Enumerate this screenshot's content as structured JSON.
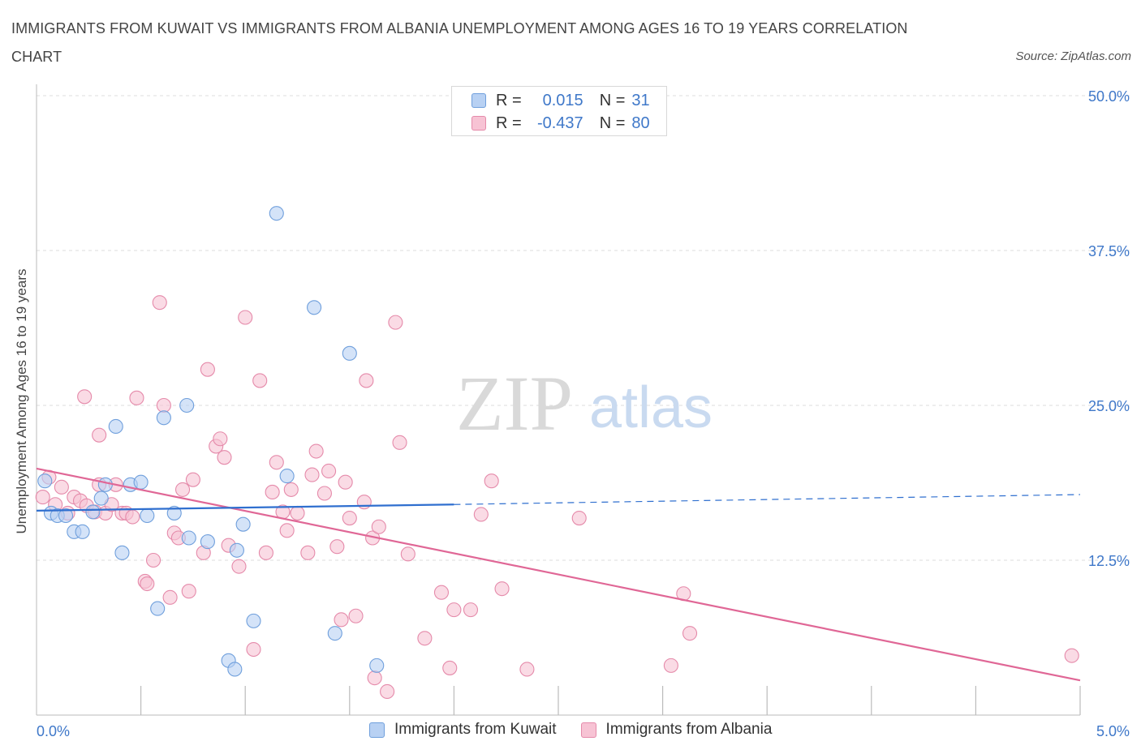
{
  "title": "IMMIGRANTS FROM KUWAIT VS IMMIGRANTS FROM ALBANIA UNEMPLOYMENT AMONG AGES 16 TO 19 YEARS CORRELATION CHART",
  "source": "Source: ZipAtlas.com",
  "watermark": {
    "zip": "ZIP",
    "atlas": "atlas"
  },
  "legend": {
    "kuwait": {
      "r_label": "R =",
      "r_value": "0.015",
      "n_label": "N =",
      "n_value": "31"
    },
    "albania": {
      "r_label": "R =",
      "r_value": "-0.437",
      "n_label": "N =",
      "n_value": "80"
    }
  },
  "colors": {
    "kuwait_fill": "#b8d1f3",
    "kuwait_stroke": "#6f9fdc",
    "kuwait_line": "#2f6fcf",
    "albania_fill": "#f7c3d4",
    "albania_stroke": "#e58aaa",
    "albania_line": "#e06796",
    "grid": "#dddddd",
    "tick_text": "#3f78c9"
  },
  "chart_data": {
    "type": "scatter",
    "title": "IMMIGRANTS FROM KUWAIT VS IMMIGRANTS FROM ALBANIA UNEMPLOYMENT AMONG AGES 16 TO 19 YEARS CORRELATION CHART",
    "xlabel": "",
    "ylabel": "Unemployment Among Ages 16 to 19 years",
    "xlim": [
      0,
      5
    ],
    "ylim": [
      0,
      50
    ],
    "x_tick_labels": [
      "0.0%",
      "5.0%"
    ],
    "y_ticks": [
      12.5,
      25.0,
      37.5,
      50.0
    ],
    "y_tick_labels": [
      "12.5%",
      "25.0%",
      "37.5%",
      "50.0%"
    ],
    "grid": true,
    "legend_position": "top-center",
    "series": [
      {
        "name": "Immigrants from Kuwait",
        "points": [
          [
            0.04,
            18.9
          ],
          [
            0.07,
            16.3
          ],
          [
            0.1,
            16.1
          ],
          [
            0.14,
            16.1
          ],
          [
            0.18,
            14.8
          ],
          [
            0.22,
            14.8
          ],
          [
            0.27,
            16.4
          ],
          [
            0.31,
            17.5
          ],
          [
            0.33,
            18.6
          ],
          [
            0.38,
            23.3
          ],
          [
            0.41,
            13.1
          ],
          [
            0.45,
            18.6
          ],
          [
            0.5,
            18.8
          ],
          [
            0.53,
            16.1
          ],
          [
            0.58,
            8.6
          ],
          [
            0.61,
            24.0
          ],
          [
            0.66,
            16.3
          ],
          [
            0.72,
            25.0
          ],
          [
            0.73,
            14.3
          ],
          [
            0.82,
            14.0
          ],
          [
            0.92,
            4.4
          ],
          [
            0.95,
            3.7
          ],
          [
            0.96,
            13.3
          ],
          [
            0.99,
            15.4
          ],
          [
            1.04,
            7.6
          ],
          [
            1.15,
            40.5
          ],
          [
            1.2,
            19.3
          ],
          [
            1.33,
            32.9
          ],
          [
            1.43,
            6.6
          ],
          [
            1.5,
            29.2
          ],
          [
            1.63,
            4.0
          ]
        ],
        "trend_solid": [
          [
            0.0,
            16.5
          ],
          [
            2.0,
            17.0
          ]
        ],
        "trend_dashed": [
          [
            2.0,
            17.0
          ],
          [
            5.0,
            17.8
          ]
        ]
      },
      {
        "name": "Immigrants from Albania",
        "points": [
          [
            0.03,
            17.6
          ],
          [
            0.06,
            19.2
          ],
          [
            0.09,
            17.0
          ],
          [
            0.12,
            18.4
          ],
          [
            0.15,
            16.3
          ],
          [
            0.18,
            17.6
          ],
          [
            0.21,
            17.3
          ],
          [
            0.24,
            16.9
          ],
          [
            0.23,
            25.7
          ],
          [
            0.28,
            16.4
          ],
          [
            0.3,
            18.6
          ],
          [
            0.3,
            22.6
          ],
          [
            0.33,
            16.3
          ],
          [
            0.36,
            17.0
          ],
          [
            0.38,
            18.6
          ],
          [
            0.41,
            16.3
          ],
          [
            0.43,
            16.3
          ],
          [
            0.46,
            16.0
          ],
          [
            0.48,
            25.6
          ],
          [
            0.52,
            10.8
          ],
          [
            0.53,
            10.6
          ],
          [
            0.56,
            12.5
          ],
          [
            0.59,
            33.3
          ],
          [
            0.61,
            25.0
          ],
          [
            0.64,
            9.5
          ],
          [
            0.66,
            14.7
          ],
          [
            0.68,
            14.3
          ],
          [
            0.7,
            18.2
          ],
          [
            0.73,
            10.0
          ],
          [
            0.75,
            19.0
          ],
          [
            0.8,
            13.1
          ],
          [
            0.82,
            27.9
          ],
          [
            0.86,
            21.7
          ],
          [
            0.88,
            22.3
          ],
          [
            0.9,
            20.8
          ],
          [
            0.92,
            13.7
          ],
          [
            0.97,
            12.0
          ],
          [
            1.0,
            32.1
          ],
          [
            1.04,
            5.3
          ],
          [
            1.07,
            27.0
          ],
          [
            1.1,
            13.1
          ],
          [
            1.13,
            18.0
          ],
          [
            1.15,
            20.4
          ],
          [
            1.18,
            16.4
          ],
          [
            1.2,
            14.9
          ],
          [
            1.22,
            18.2
          ],
          [
            1.25,
            16.3
          ],
          [
            1.3,
            13.1
          ],
          [
            1.32,
            19.4
          ],
          [
            1.34,
            21.3
          ],
          [
            1.38,
            17.9
          ],
          [
            1.4,
            19.7
          ],
          [
            1.44,
            13.6
          ],
          [
            1.46,
            7.7
          ],
          [
            1.48,
            18.8
          ],
          [
            1.5,
            15.9
          ],
          [
            1.53,
            8.0
          ],
          [
            1.57,
            17.2
          ],
          [
            1.58,
            27.0
          ],
          [
            1.61,
            14.3
          ],
          [
            1.62,
            3.0
          ],
          [
            1.64,
            15.2
          ],
          [
            1.68,
            1.9
          ],
          [
            1.72,
            31.7
          ],
          [
            1.74,
            22.0
          ],
          [
            1.78,
            13.0
          ],
          [
            1.86,
            6.2
          ],
          [
            1.94,
            9.9
          ],
          [
            1.98,
            3.8
          ],
          [
            2.0,
            8.5
          ],
          [
            2.08,
            8.5
          ],
          [
            2.13,
            16.2
          ],
          [
            2.18,
            18.9
          ],
          [
            2.23,
            10.2
          ],
          [
            2.35,
            3.7
          ],
          [
            2.6,
            15.9
          ],
          [
            3.04,
            4.0
          ],
          [
            3.1,
            9.8
          ],
          [
            3.13,
            6.6
          ],
          [
            4.96,
            4.8
          ]
        ],
        "trend": [
          [
            0.0,
            19.9
          ],
          [
            5.0,
            2.8
          ]
        ]
      }
    ]
  },
  "bottom_legend": {
    "kuwait": "Immigrants from Kuwait",
    "albania": "Immigrants from Albania"
  }
}
